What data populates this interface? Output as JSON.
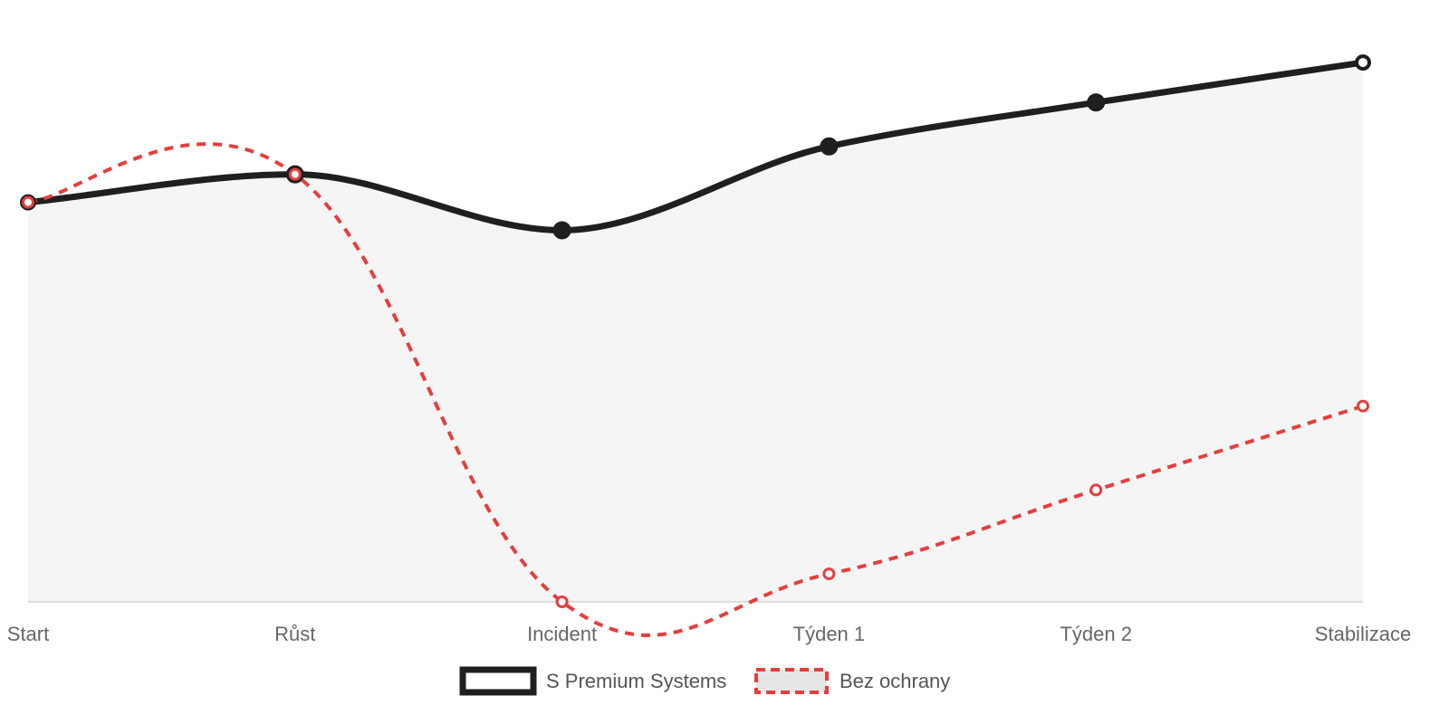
{
  "chart_data": {
    "type": "line",
    "categories": [
      "Start",
      "Růst",
      "Incident",
      "Týden 1",
      "Týden 2",
      "Stabilizace"
    ],
    "series": [
      {
        "name": "S Premium Systems",
        "values": [
          100,
          107,
          93,
          114,
          125,
          135
        ],
        "color": "#1f1f1f",
        "fill": "#f5f5f5",
        "line_style": "solid",
        "area": true
      },
      {
        "name": "Bez ochrany",
        "values": [
          100,
          107,
          0,
          7,
          28,
          49
        ],
        "color": "#e53e3e",
        "fill": "#e6e6e6",
        "line_style": "dashed",
        "area": false
      }
    ],
    "ylim": [
      0,
      140
    ],
    "grid": false,
    "legend": "bottom"
  }
}
